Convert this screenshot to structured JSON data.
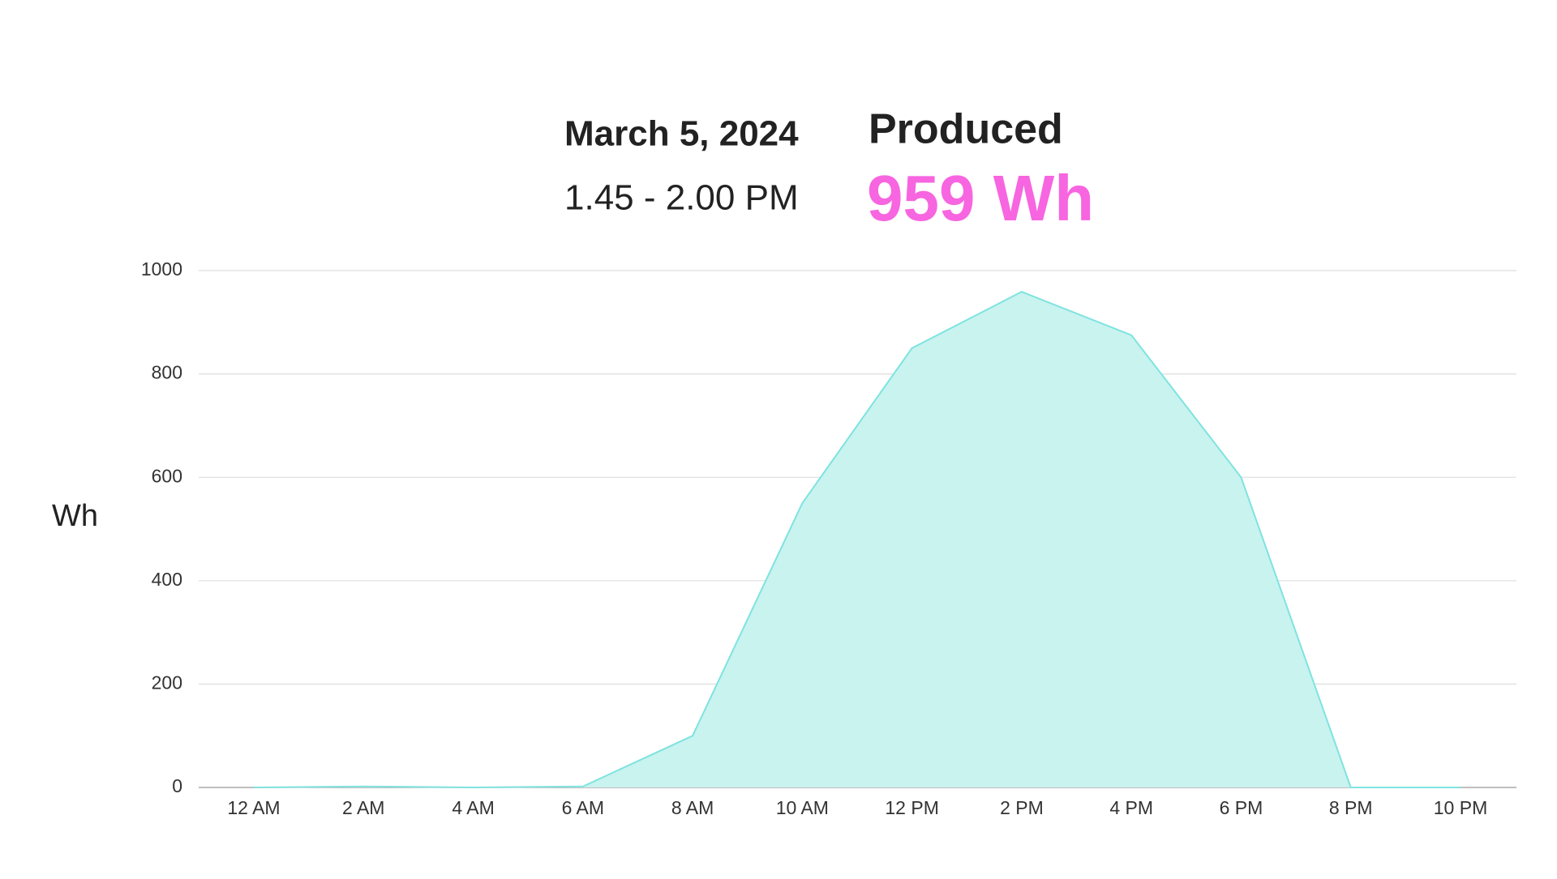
{
  "header": {
    "date": "March 5, 2024",
    "time_range": "1.45 - 2.00 PM",
    "metric_label": "Produced",
    "metric_value": "959 Wh"
  },
  "chart_data": {
    "type": "area",
    "y_label": "Wh",
    "categories": [
      "12 AM",
      "2 AM",
      "4 AM",
      "6 AM",
      "8 AM",
      "10 AM",
      "12 PM",
      "2 PM",
      "4 PM",
      "6 PM",
      "8 PM",
      "10 PM"
    ],
    "values": [
      0,
      2,
      0,
      2,
      100,
      550,
      850,
      959,
      875,
      600,
      0,
      0
    ],
    "color": "#7fe3df",
    "fill": "#c8f3ef",
    "ylim": [
      0,
      1000
    ],
    "yticks": [
      0,
      200,
      400,
      600,
      800,
      1000
    ],
    "grid": true
  }
}
